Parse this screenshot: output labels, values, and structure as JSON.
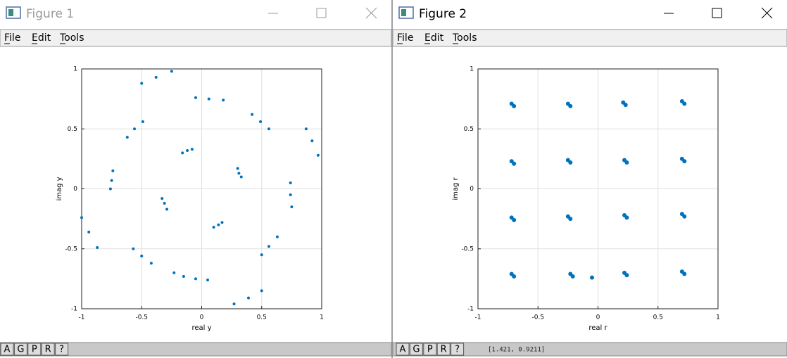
{
  "windows": [
    {
      "title": "Figure 1",
      "menu": [
        "File",
        "Edit",
        "Tools"
      ],
      "buttons": [
        "A",
        "G",
        "P",
        "R",
        "?"
      ]
    },
    {
      "title": "Figure 2",
      "menu": [
        "File",
        "Edit",
        "Tools"
      ],
      "buttons": [
        "A",
        "G",
        "P",
        "R",
        "?"
      ],
      "status": "[1.421, 0.9211]"
    }
  ],
  "chart_data": [
    {
      "type": "scatter",
      "xlabel": "real y",
      "ylabel": "imag y",
      "color": "#0072bd",
      "grid": true,
      "xlim": [
        -1,
        1
      ],
      "ylim": [
        -1,
        1
      ],
      "xticks": [
        -1,
        -0.5,
        0,
        0.5,
        1
      ],
      "yticks": [
        -1,
        -0.5,
        0,
        0.5,
        1
      ],
      "x": [
        -0.5,
        -0.38,
        -0.25,
        -0.05,
        0.06,
        0.18,
        0.42,
        0.49,
        0.56,
        0.87,
        0.92,
        0.97,
        0.74,
        0.74,
        0.75,
        0.5,
        0.56,
        0.63,
        0.27,
        0.39,
        0.5,
        -0.15,
        -0.05,
        0.05,
        -0.57,
        -0.5,
        -0.42,
        -1,
        -0.94,
        -0.87,
        -0.74,
        -0.75,
        -0.76,
        -0.62,
        -0.56,
        -0.49,
        -0.16,
        -0.12,
        -0.08,
        0.3,
        0.31,
        0.33,
        0.1,
        0.14,
        0.17,
        -0.33,
        -0.31,
        -0.29,
        -0.23
      ],
      "y": [
        0.88,
        0.93,
        0.98,
        0.76,
        0.75,
        0.74,
        0.62,
        0.56,
        0.5,
        0.5,
        0.4,
        0.28,
        0.05,
        -0.05,
        -0.15,
        -0.55,
        -0.48,
        -0.4,
        -0.96,
        -0.91,
        -0.85,
        -0.73,
        -0.75,
        -0.76,
        -0.5,
        -0.56,
        -0.62,
        -0.24,
        -0.36,
        -0.49,
        0.15,
        0.07,
        0,
        0.43,
        0.5,
        0.56,
        0.3,
        0.32,
        0.33,
        0.17,
        0.13,
        0.1,
        -0.32,
        -0.3,
        -0.28,
        -0.08,
        -0.12,
        -0.17,
        -0.7
      ]
    },
    {
      "type": "scatter",
      "xlabel": "real r",
      "ylabel": "imag r",
      "color": "#0072bd",
      "grid": true,
      "xlim": [
        -1,
        1
      ],
      "ylim": [
        -1,
        1
      ],
      "xticks": [
        -1,
        -0.5,
        0,
        0.5,
        1
      ],
      "yticks": [
        -1,
        -0.5,
        0,
        0.5,
        1
      ],
      "x": [
        -0.72,
        -0.7,
        -0.25,
        -0.23,
        0.21,
        0.23,
        0.7,
        0.72,
        -0.72,
        -0.7,
        -0.25,
        -0.23,
        0.22,
        0.24,
        0.7,
        0.72,
        -0.72,
        -0.7,
        -0.25,
        -0.23,
        0.22,
        0.24,
        0.7,
        0.72,
        -0.72,
        -0.7,
        -0.23,
        -0.21,
        0.22,
        0.24,
        0.7,
        0.72,
        -0.05
      ],
      "y": [
        0.71,
        0.69,
        0.71,
        0.69,
        0.72,
        0.7,
        0.73,
        0.71,
        0.23,
        0.21,
        0.24,
        0.22,
        0.24,
        0.22,
        0.25,
        0.23,
        -0.24,
        -0.26,
        -0.23,
        -0.25,
        -0.22,
        -0.24,
        -0.21,
        -0.23,
        -0.71,
        -0.73,
        -0.71,
        -0.73,
        -0.7,
        -0.72,
        -0.69,
        -0.71,
        -0.74
      ]
    }
  ]
}
